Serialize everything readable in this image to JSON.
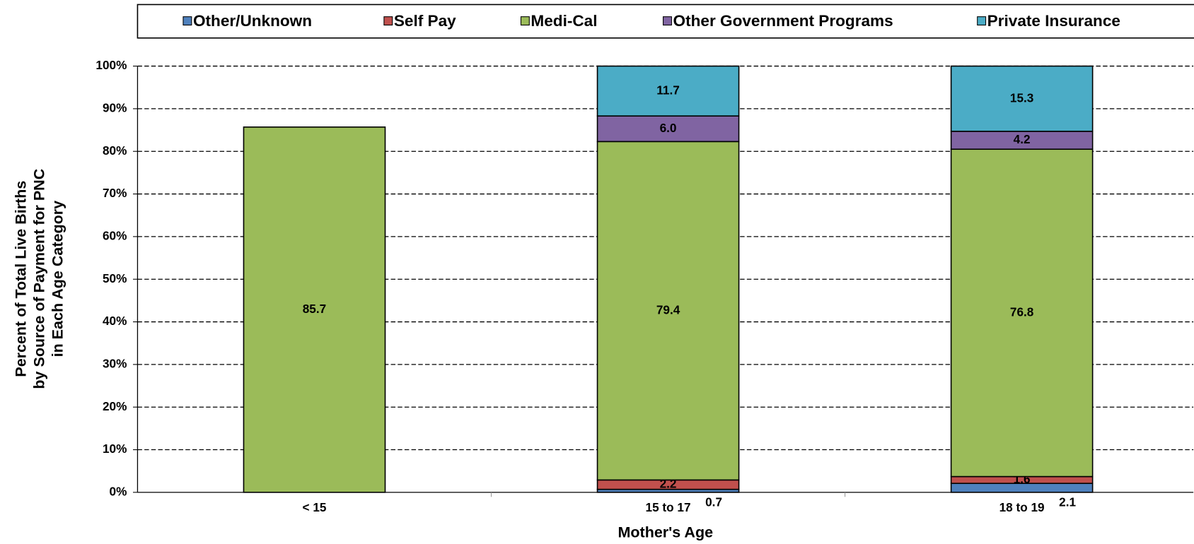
{
  "chart_data": {
    "type": "stacked_bar",
    "xlabel": "Mother's Age",
    "ylabel": [
      "Percent of Total Live Births",
      "by Source of Payment for PNC",
      "in Each Age Category"
    ],
    "categories": [
      "< 15",
      "15 to 17",
      "18 to 19"
    ],
    "series": [
      {
        "name": "Other/Unknown",
        "color": "#4f81bd",
        "values": [
          null,
          0.7,
          2.1
        ]
      },
      {
        "name": "Self Pay",
        "color": "#c0504d",
        "values": [
          null,
          2.2,
          1.6
        ]
      },
      {
        "name": "Medi-Cal",
        "color": "#9bbb59",
        "values": [
          85.7,
          79.4,
          76.8
        ]
      },
      {
        "name": "Other Government Programs",
        "color": "#8064a2",
        "values": [
          null,
          6.0,
          4.2
        ]
      },
      {
        "name": "Private Insurance",
        "color": "#4bacc6",
        "values": [
          null,
          11.7,
          15.3
        ]
      }
    ],
    "value_labels": [
      [
        null,
        "0.7",
        "2.1"
      ],
      [
        null,
        "2.2",
        "1.6"
      ],
      [
        "85.7",
        "79.4",
        "76.8"
      ],
      [
        null,
        "6.0",
        "4.2"
      ],
      [
        null,
        "11.7",
        "15.3"
      ]
    ],
    "ylim": [
      0,
      100
    ],
    "yticks": [
      {
        "value": 0,
        "label": "0%"
      },
      {
        "value": 10,
        "label": "10%"
      },
      {
        "value": 20,
        "label": "20%"
      },
      {
        "value": 30,
        "label": "30%"
      },
      {
        "value": 40,
        "label": "40%"
      },
      {
        "value": 50,
        "label": "50%"
      },
      {
        "value": 60,
        "label": "60%"
      },
      {
        "value": 70,
        "label": "70%"
      },
      {
        "value": 80,
        "label": "80%"
      },
      {
        "value": 90,
        "label": "90%"
      },
      {
        "value": 100,
        "label": "100%"
      }
    ],
    "grid": true,
    "legend": "top"
  }
}
